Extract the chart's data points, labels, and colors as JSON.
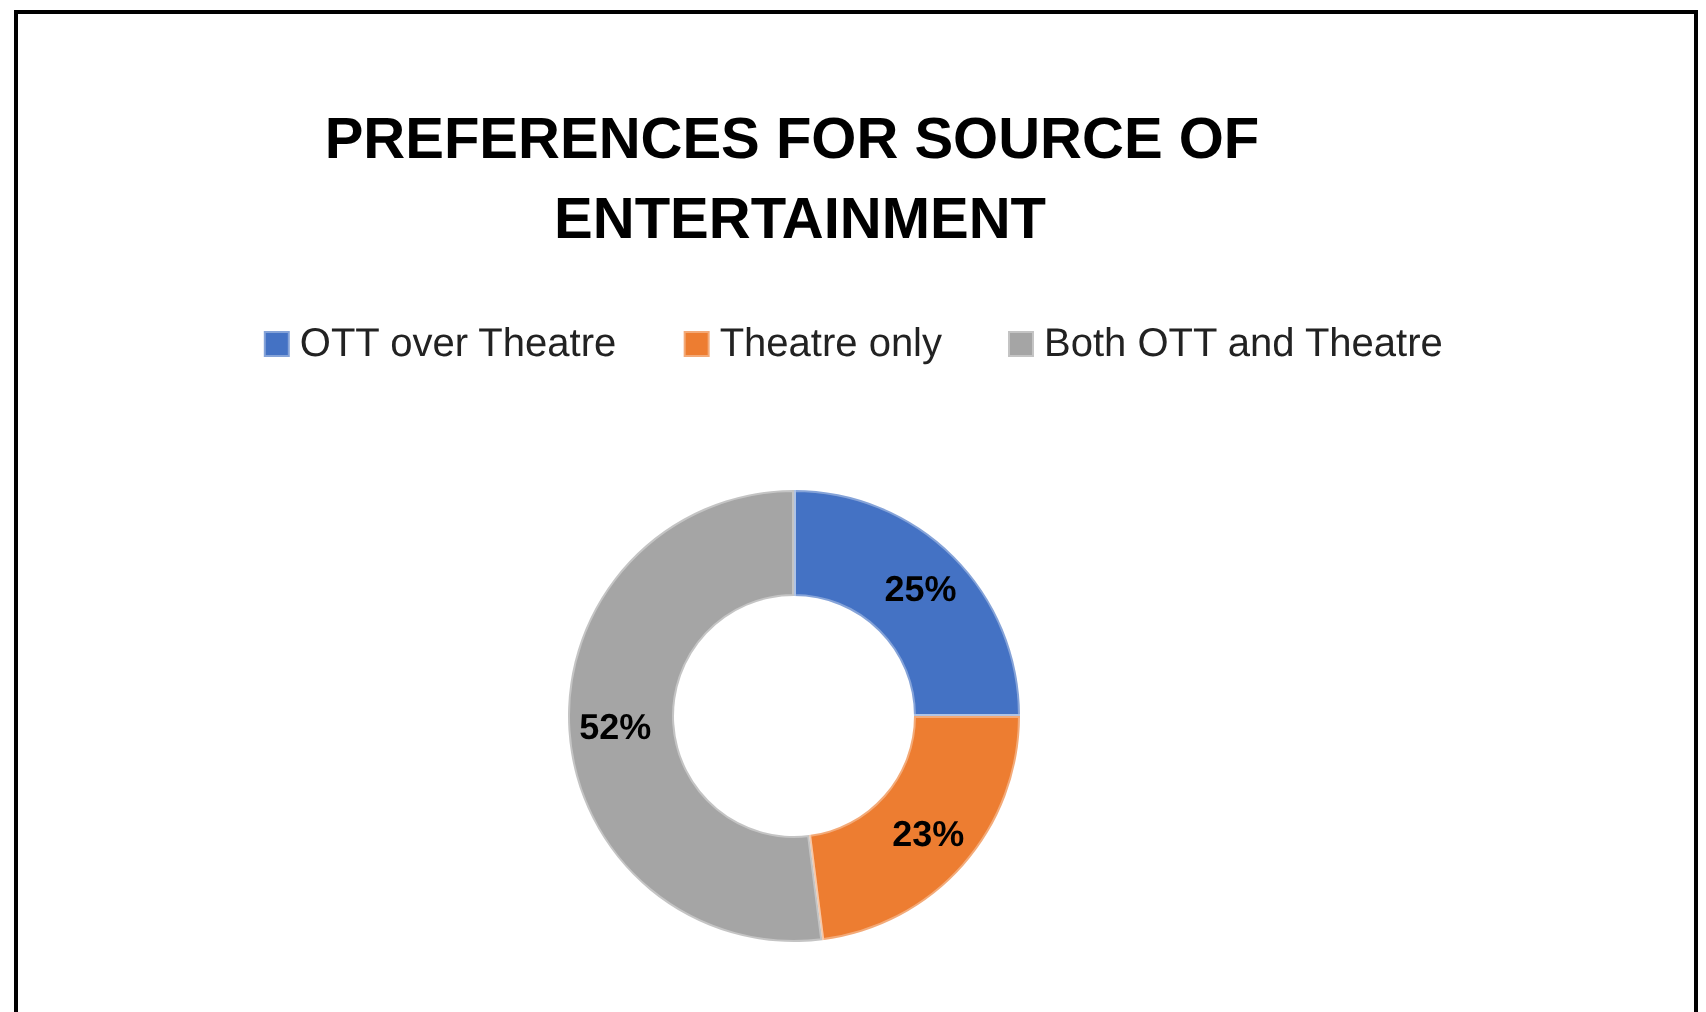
{
  "chart_data": {
    "type": "donut",
    "title": "PREFERENCES FOR SOURCE OF ENTERTAINMENT",
    "categories": [
      "OTT over Theatre",
      "Theatre only",
      "Both OTT and Theatre"
    ],
    "values": [
      25,
      23,
      52
    ],
    "colors": [
      "#4472c4",
      "#ed7d31",
      "#a5a5a5"
    ],
    "value_labels": [
      "25%",
      "23%",
      "52%"
    ],
    "legend": "top"
  }
}
